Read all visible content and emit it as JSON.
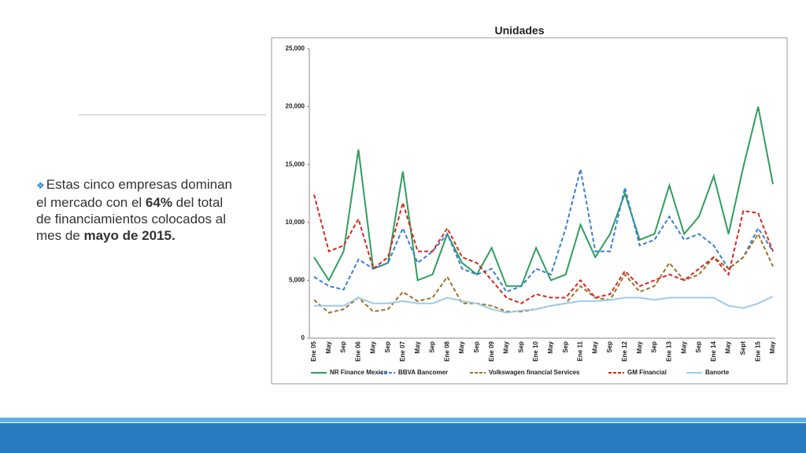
{
  "slide": {
    "bullet": {
      "parts": [
        {
          "text": "Estas cinco empresas dominan el mercado con el ",
          "bold": false
        },
        {
          "text": "64%",
          "bold": true
        },
        {
          "text": " del total de financiamientos colocados al mes de ",
          "bold": false
        },
        {
          "text": "mayo de 2015.",
          "bold": true
        }
      ]
    }
  },
  "chart_data": {
    "type": "line",
    "title": "Unidades",
    "categories": [
      "Ene 05",
      "May",
      "Sep",
      "Ene 06",
      "May",
      "Sep",
      "Ene 07",
      "May",
      "Sep",
      "Ene 08",
      "May",
      "Sep",
      "Ene 09",
      "May",
      "Sep",
      "Ene 10",
      "May",
      "Sep",
      "Ene 11",
      "May",
      "Sep",
      "Ene 12",
      "May",
      "Sep",
      "Ene 13",
      "May",
      "Sep",
      "Ene 14",
      "May",
      "Sept",
      "Ene 15",
      "May"
    ],
    "ylim": [
      0,
      25000
    ],
    "yticks": [
      0,
      {
        "value": 5000,
        "label": "5,000"
      },
      {
        "value": 10000,
        "label": "10,000"
      },
      {
        "value": 15000,
        "label": "15,000"
      },
      {
        "value": 20000,
        "label": "20,000"
      },
      {
        "value": 25000,
        "label": "25,000"
      }
    ],
    "series": [
      {
        "name": "NR Finance Mexico",
        "color": "#2e9e5e",
        "dashed": false,
        "values": [
          7000,
          5000,
          7500,
          16300,
          6000,
          6500,
          14400,
          5000,
          5500,
          9000,
          6500,
          5500,
          7800,
          4500,
          4500,
          7800,
          5000,
          5500,
          9800,
          7000,
          9000,
          12500,
          8500,
          9000,
          13200,
          9000,
          10500,
          14000,
          9000,
          14800,
          20000,
          13300
        ]
      },
      {
        "name": "BBVA Bancomer",
        "color": "#3b7dd8",
        "dashed": true,
        "values": [
          5300,
          4500,
          4200,
          6800,
          6000,
          6500,
          9500,
          6500,
          7500,
          9000,
          6000,
          5500,
          6000,
          4000,
          4500,
          6000,
          5500,
          9500,
          14600,
          7500,
          7500,
          13000,
          8000,
          8500,
          10500,
          8500,
          9000,
          8000,
          6000,
          7000,
          9500,
          7500
        ]
      },
      {
        "name": "Volkswagen financial Services",
        "color": "#a0702a",
        "dashed": true,
        "values": [
          3300,
          2200,
          2500,
          3500,
          2300,
          2500,
          4000,
          3200,
          3500,
          5300,
          3000,
          3000,
          2800,
          2300,
          2300,
          2500,
          2800,
          3000,
          4500,
          3500,
          3300,
          5500,
          4000,
          4500,
          6500,
          5000,
          5500,
          7000,
          6000,
          7000,
          9000,
          6200
        ]
      },
      {
        "name": "GM Financial",
        "color": "#d42a20",
        "dashed": true,
        "values": [
          12400,
          7500,
          8000,
          10300,
          6000,
          7000,
          11700,
          7500,
          7500,
          9500,
          7000,
          6500,
          5000,
          3500,
          3000,
          3800,
          3500,
          3500,
          5000,
          3500,
          3800,
          5800,
          4500,
          5000,
          5500,
          5000,
          6000,
          7000,
          5500,
          11000,
          10800,
          7500
        ]
      },
      {
        "name": "Banorte",
        "color": "#9ccbe8",
        "dashed": false,
        "values": [
          2800,
          2800,
          2800,
          3500,
          3000,
          3000,
          3200,
          3000,
          3000,
          3500,
          3200,
          3000,
          2500,
          2200,
          2400,
          2500,
          2800,
          3000,
          3200,
          3200,
          3300,
          3500,
          3500,
          3300,
          3500,
          3500,
          3500,
          3500,
          2800,
          2600,
          3000,
          3600
        ]
      }
    ]
  }
}
